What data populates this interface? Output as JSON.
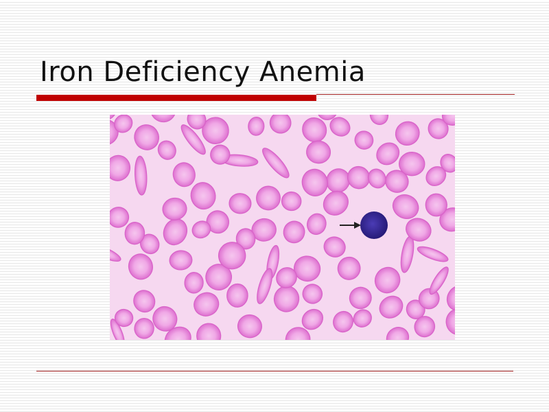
{
  "slide": {
    "title": "Iron Deficiency Anemia"
  }
}
